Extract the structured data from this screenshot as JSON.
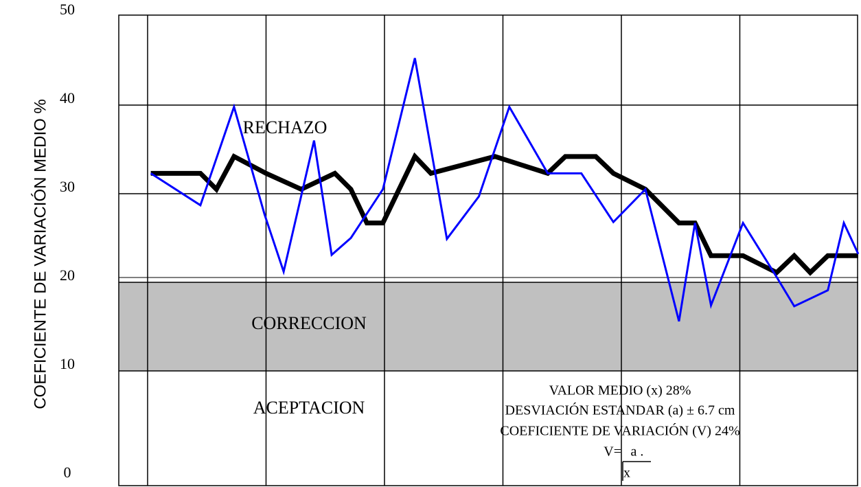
{
  "chart_data": {
    "type": "line",
    "y_label": "COEFICIENTE DE VARIACIÓN MEDIO %",
    "ylim": [
      0,
      50
    ],
    "yticks": [
      0,
      10,
      20,
      30,
      40,
      50
    ],
    "xlim": [
      -2,
      44.2
    ],
    "xticks": [
      -0.2,
      7.2,
      14.6,
      22,
      29.4,
      36.8
    ],
    "grid": true,
    "band": {
      "range": [
        10,
        20
      ],
      "color": "#c0c0c0"
    },
    "zones": [
      "RECHAZO",
      "CORRECCION",
      "ACEPTACION"
    ],
    "stats": [
      "VALOR MEDIO (x) 28%",
      "DESVIACIÓN ESTANDAR (a) ± 6.7 cm",
      "COEFICIENTE DE VARIACIÓN (V) 24%"
    ],
    "formula": {
      "lhs": "V=",
      "numerator": "a .",
      "denominator": "x"
    },
    "series": [
      {
        "color": "#000000",
        "width": 7,
        "x": [
          0,
          3.1,
          4.1,
          5.2,
          7.2,
          9.4,
          11.5,
          12.5,
          13.5,
          14.5,
          16.5,
          17.5,
          21.5,
          24.8,
          25.9,
          27.8,
          28.9,
          30.9,
          33,
          34,
          35,
          37,
          39.1,
          40.2,
          41.2,
          42.3,
          44.2
        ],
        "values": [
          32.3,
          32.3,
          30.5,
          34.2,
          32.3,
          30.5,
          32.3,
          30.5,
          26.7,
          26.7,
          34.2,
          32.3,
          34.2,
          32.3,
          34.2,
          34.2,
          32.3,
          30.5,
          26.7,
          26.7,
          23,
          23,
          21.1,
          23,
          21.1,
          23,
          23
        ]
      },
      {
        "color": "#0000ff",
        "width": 3,
        "x": [
          0,
          3.1,
          5.2,
          7.1,
          8.3,
          10.2,
          11.3,
          12.5,
          14.5,
          16.5,
          18.5,
          20.5,
          22.4,
          24.8,
          26.9,
          28.9,
          30.9,
          33,
          34,
          35,
          37,
          39.1,
          40.2,
          42.3,
          43.3,
          44.2
        ],
        "values": [
          32.3,
          28.7,
          39.8,
          27.7,
          21.2,
          36,
          23.1,
          25,
          30.5,
          45.3,
          24.9,
          29.7,
          39.8,
          32.3,
          32.3,
          26.8,
          30.5,
          15.6,
          26.7,
          17.4,
          26.7,
          20.6,
          17.3,
          19.1,
          26.7,
          23.2
        ]
      }
    ]
  }
}
